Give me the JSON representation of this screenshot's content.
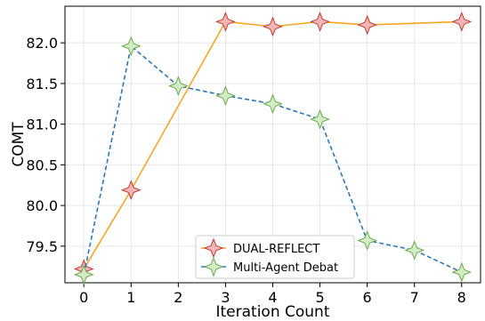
{
  "chart_data": {
    "type": "line",
    "xlabel": "Iteration Count",
    "ylabel": "COMT",
    "x": [
      0,
      1,
      2,
      3,
      4,
      5,
      6,
      7,
      8
    ],
    "x_ticks": [
      "0",
      "1",
      "2",
      "3",
      "4",
      "5",
      "6",
      "7",
      "8"
    ],
    "y_ticks": [
      "79.5",
      "80.0",
      "80.5",
      "81.0",
      "81.5",
      "82.0"
    ],
    "xlim": [
      -0.4,
      8.4
    ],
    "ylim": [
      79.05,
      82.45
    ],
    "grid": true,
    "legend_position": "lower-center",
    "series": [
      {
        "name": "DUAL-REFLECT",
        "x": [
          0,
          1,
          3,
          4,
          5,
          6,
          8
        ],
        "values": [
          79.22,
          80.19,
          82.26,
          82.2,
          82.26,
          82.22,
          82.26
        ],
        "line_color": "#f5a623",
        "line_style": "solid",
        "marker_fill": "#f4b6b6",
        "marker_edge": "#c0392b"
      },
      {
        "name": "Multi-Agent Debat",
        "x": [
          0,
          1,
          2,
          3,
          4,
          5,
          6,
          7,
          8
        ],
        "values": [
          79.15,
          81.96,
          81.47,
          81.35,
          81.25,
          81.06,
          79.57,
          79.45,
          79.18
        ],
        "line_color": "#2878b5",
        "line_style": "dashed",
        "marker_fill": "#d4ecc4",
        "marker_edge": "#6aa84f"
      }
    ]
  }
}
